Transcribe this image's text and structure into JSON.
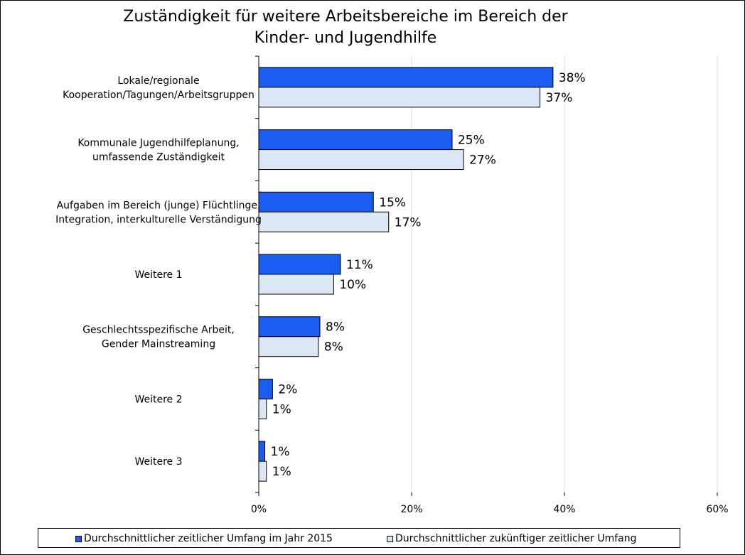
{
  "chart_data": {
    "type": "bar",
    "orientation": "horizontal",
    "title_lines": [
      "Zuständigkeit für weitere Arbeitsbereiche im Bereich der",
      "Kinder- und Jugendhilfe"
    ],
    "categories": [
      [
        "Lokale/regionale",
        "Kooperation/Tagungen/Arbeitsgruppen"
      ],
      [
        "Kommunale Jugendhilfeplanung,",
        "umfassende Zuständigkeit"
      ],
      [
        "Aufgaben im Bereich (junge) Flüchtlinge,",
        "Integration, interkulturelle Verständigung"
      ],
      [
        "Weitere 1"
      ],
      [
        "Geschlechtsspezifische Arbeit,",
        "Gender Mainstreaming"
      ],
      [
        "Weitere 2"
      ],
      [
        "Weitere 3"
      ]
    ],
    "series": [
      {
        "name": "Durchschnittlicher zeitlicher Umfang im Jahr 2015",
        "color": "#1a5cf0",
        "values": [
          38.5,
          25.3,
          15.0,
          10.7,
          8.0,
          1.8,
          0.8
        ],
        "labels": [
          "38%",
          "25%",
          "15%",
          "11%",
          "8%",
          "2%",
          "1%"
        ]
      },
      {
        "name": "Durchschnittlicher zukünftiger zeitlicher Umfang",
        "color": "#dce7f5",
        "values": [
          36.8,
          26.8,
          17.0,
          9.8,
          7.8,
          1.0,
          1.0
        ],
        "labels": [
          "37%",
          "27%",
          "17%",
          "10%",
          "8%",
          "1%",
          "1%"
        ]
      }
    ],
    "x_ticks": [
      "0%",
      "20%",
      "40%",
      "60%"
    ],
    "xlim": [
      0,
      60
    ],
    "grid": true,
    "legend_position": "bottom"
  }
}
